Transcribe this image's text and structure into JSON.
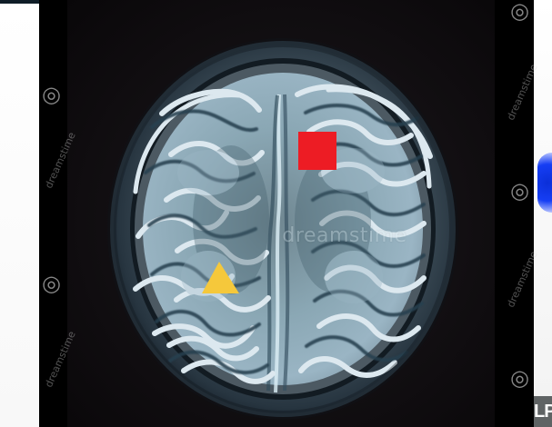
{
  "image": {
    "watermark_center": "dreamstime",
    "watermark_side": "dreamstime",
    "bottom_right_logo": "LP",
    "annotations": [
      {
        "shape": "square",
        "color": "#ed1c24"
      },
      {
        "shape": "triangle",
        "color": "#f5c83b"
      }
    ]
  },
  "colors": {
    "frame_black": "#000000",
    "right_blue": "#163ef4"
  }
}
